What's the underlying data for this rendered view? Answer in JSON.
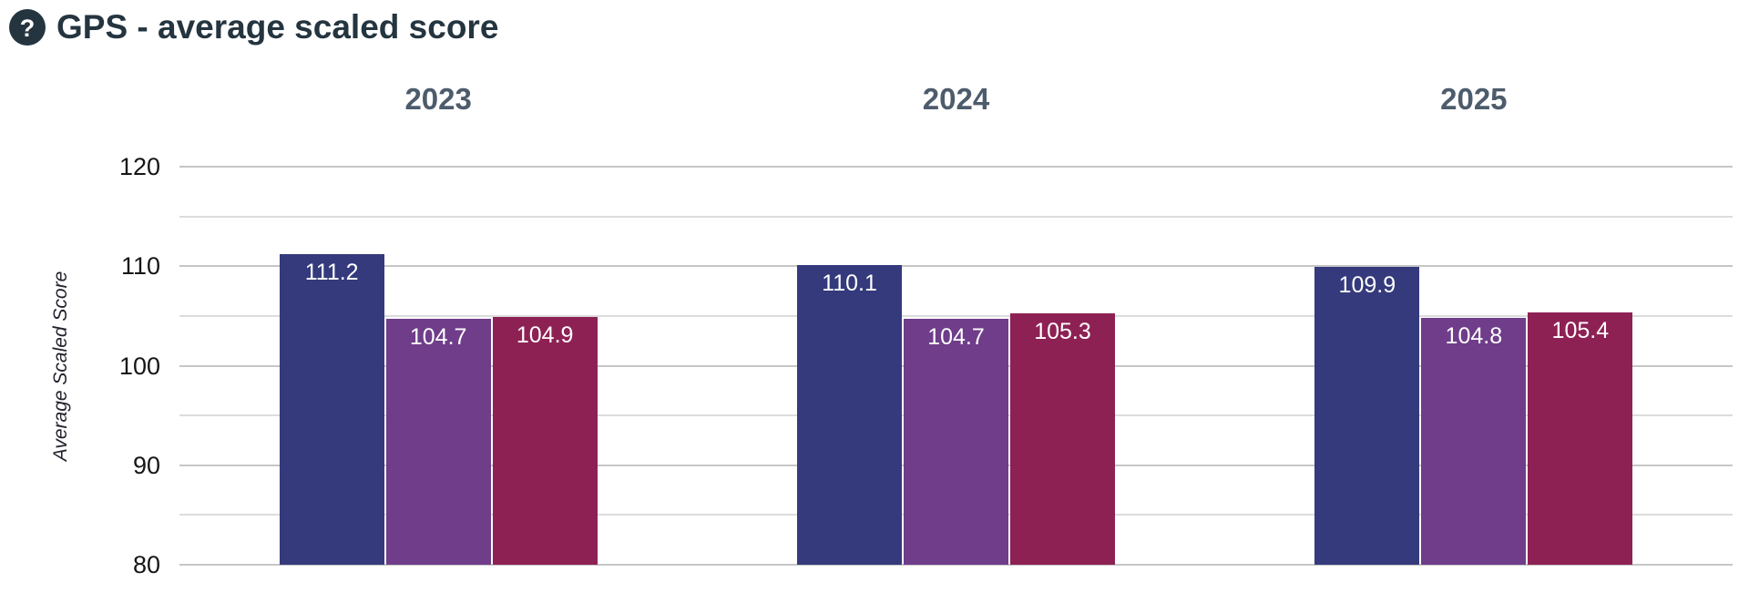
{
  "header": {
    "title": "GPS - average scaled score"
  },
  "chart_data": {
    "type": "bar",
    "title": "GPS - average scaled score",
    "ylabel": "Average Scaled Score",
    "ylim": [
      80,
      120
    ],
    "yticks": [
      120,
      110,
      100,
      90,
      80
    ],
    "minor_gridlines": [
      115,
      105,
      95,
      85
    ],
    "grid": true,
    "legend_position": "none",
    "groups": [
      {
        "label": "2023",
        "bars": [
          {
            "value": 111.2,
            "label": "111.2",
            "color": "#343a7c"
          },
          {
            "value": 104.7,
            "label": "104.7",
            "color": "#6f3d8a"
          },
          {
            "value": 104.9,
            "label": "104.9",
            "color": "#8e2154"
          }
        ]
      },
      {
        "label": "2024",
        "bars": [
          {
            "value": 110.1,
            "label": "110.1",
            "color": "#343a7c"
          },
          {
            "value": 104.7,
            "label": "104.7",
            "color": "#6f3d8a"
          },
          {
            "value": 105.3,
            "label": "105.3",
            "color": "#8e2154"
          }
        ]
      },
      {
        "label": "2025",
        "bars": [
          {
            "value": 109.9,
            "label": "109.9",
            "color": "#343a7c"
          },
          {
            "value": 104.8,
            "label": "104.8",
            "color": "#6f3d8a"
          },
          {
            "value": 105.4,
            "label": "105.4",
            "color": "#8e2154"
          }
        ]
      }
    ]
  },
  "colors": {
    "bar_navy": "#343a7c",
    "bar_purple": "#6f3d8a",
    "bar_crimson": "#8e2154",
    "title_text": "#243540",
    "group_label_text": "#4d5c6c",
    "tick_label_text": "#161616",
    "gridline_major": "#c6c6c6",
    "gridline_minor": "#dcdcdc",
    "bar_value_text": "#ffffff"
  }
}
